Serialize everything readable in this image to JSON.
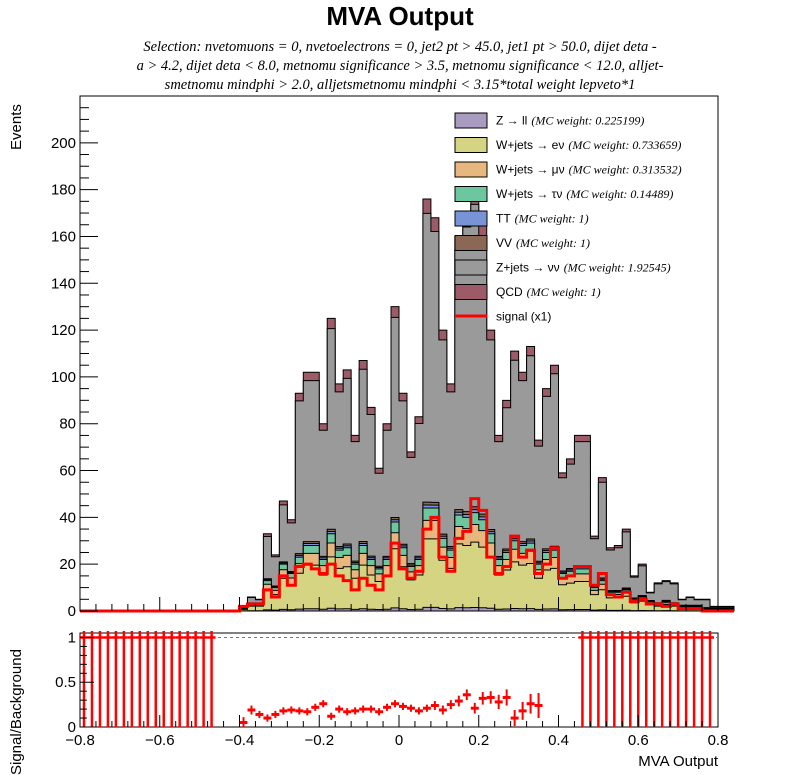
{
  "title": "MVA Output",
  "subtitle": [
    "Selection: nvetomuons = 0, nvetoelectrons = 0, jet2 pt > 45.0, jet1 pt > 50.0, dijet deta -",
    "a > 4.2, dijet deta < 8.0, metnomu significance > 3.5, metnomu significance < 12.0, alljet-",
    "smetnomu mindphi > 2.0, alljetsmetnomu mindphi < 3.15*total weight lepveto*1"
  ],
  "colors": {
    "zll": "#a99cc1",
    "wenu": "#d4d482",
    "wmunu": "#e7b77e",
    "wtaunu": "#6cc69f",
    "tt": "#7894d6",
    "vv": "#8b6755",
    "znunu": "#9a9a9a",
    "qcd": "#9c5b66",
    "signal": "#ff0000"
  },
  "chart_data": [
    {
      "type": "histogram-stack",
      "xlabel": "",
      "ylabel": "Events",
      "xlim": [
        -0.8,
        0.8
      ],
      "ylim": [
        0,
        220
      ],
      "yticks": [
        0,
        20,
        40,
        60,
        80,
        100,
        120,
        140,
        160,
        180,
        200
      ],
      "bin_start": -0.4,
      "bin_width": 0.02,
      "legend_position": "top-right",
      "legend": [
        {
          "key": "zll",
          "label": "Z → ll",
          "weight": "(MC weight: 0.225199)"
        },
        {
          "key": "wenu",
          "label": "W+jets → eν",
          "weight": "(MC weight: 0.733659)"
        },
        {
          "key": "wmunu",
          "label": "W+jets → μν",
          "weight": "(MC weight: 0.313532)"
        },
        {
          "key": "wtaunu",
          "label": "W+jets → τν",
          "weight": "(MC weight: 0.14489)"
        },
        {
          "key": "tt",
          "label": "TT",
          "weight": "(MC weight: 1)"
        },
        {
          "key": "vv",
          "label": "VV",
          "weight": "(MC weight: 1)"
        },
        {
          "key": "znunu",
          "label": "Z+jets → νν",
          "weight": "(MC weight: 1.92545)"
        },
        {
          "key": "qcd",
          "label": "QCD",
          "weight": "(MC weight: 1)"
        },
        {
          "key": "signal",
          "label": "signal (x1)",
          "weight": ""
        }
      ],
      "total": [
        1,
        6,
        5,
        33,
        24,
        47,
        39,
        93,
        102,
        102,
        80,
        125,
        97,
        103,
        75,
        107,
        87,
        61,
        80,
        130,
        93,
        68,
        83,
        176,
        168,
        120,
        97,
        160,
        170,
        180,
        165,
        120,
        75,
        90,
        111,
        102,
        113,
        73,
        95,
        105,
        59,
        65,
        75,
        75,
        32,
        57,
        27,
        28,
        35,
        15,
        20,
        8,
        12,
        13,
        12,
        5,
        6,
        5,
        5,
        2,
        2,
        2
      ],
      "wjets": [
        1,
        3,
        3,
        13,
        10,
        20,
        16,
        23,
        28,
        28,
        22,
        33,
        26,
        27,
        20,
        28,
        22,
        18,
        22,
        38,
        27,
        19,
        22,
        44,
        44,
        31,
        26,
        41,
        40,
        42,
        39,
        33,
        22,
        25,
        30,
        28,
        29,
        20,
        25,
        26,
        16,
        17,
        18,
        18,
        10,
        13,
        8,
        8,
        9,
        5,
        6,
        4,
        3,
        4,
        3,
        2,
        2,
        2,
        1,
        1,
        1,
        1
      ],
      "signal": [
        2,
        3,
        3,
        9,
        6,
        15,
        11,
        19,
        20,
        18,
        16,
        20,
        15,
        13,
        9,
        14,
        11,
        9,
        15,
        29,
        18,
        14,
        17,
        35,
        40,
        23,
        17,
        31,
        34,
        48,
        43,
        23,
        16,
        19,
        32,
        23,
        26,
        16,
        20,
        27,
        14,
        15,
        19,
        19,
        11,
        16,
        7,
        6,
        8,
        4,
        5,
        3,
        3,
        2,
        3,
        1,
        1,
        1,
        0,
        0,
        0,
        0
      ]
    },
    {
      "type": "ratio",
      "xlabel": "MVA Output",
      "ylabel": "Signal/Background",
      "xlim": [
        -0.8,
        0.8
      ],
      "ylim": [
        0,
        1.05
      ],
      "yticks": [
        0,
        0.5,
        1
      ],
      "xticks": [
        -0.8,
        -0.6,
        -0.4,
        -0.2,
        0,
        0.2,
        0.4,
        0.6,
        0.8
      ],
      "undefined_ranges": [
        [
          -0.8,
          -0.45
        ],
        [
          0.45,
          0.8
        ]
      ],
      "points": [
        {
          "x": -0.39,
          "y": 0.05,
          "err": 0.06
        },
        {
          "x": -0.37,
          "y": 0.19,
          "err": 0.05
        },
        {
          "x": -0.35,
          "y": 0.14,
          "err": 0.04
        },
        {
          "x": -0.33,
          "y": 0.1,
          "err": 0.04
        },
        {
          "x": -0.31,
          "y": 0.14,
          "err": 0.04
        },
        {
          "x": -0.29,
          "y": 0.18,
          "err": 0.04
        },
        {
          "x": -0.27,
          "y": 0.19,
          "err": 0.04
        },
        {
          "x": -0.25,
          "y": 0.18,
          "err": 0.04
        },
        {
          "x": -0.23,
          "y": 0.17,
          "err": 0.04
        },
        {
          "x": -0.21,
          "y": 0.22,
          "err": 0.04
        },
        {
          "x": -0.19,
          "y": 0.26,
          "err": 0.04
        },
        {
          "x": -0.17,
          "y": 0.12,
          "err": 0.04
        },
        {
          "x": -0.15,
          "y": 0.2,
          "err": 0.04
        },
        {
          "x": -0.13,
          "y": 0.17,
          "err": 0.04
        },
        {
          "x": -0.11,
          "y": 0.18,
          "err": 0.04
        },
        {
          "x": -0.09,
          "y": 0.2,
          "err": 0.04
        },
        {
          "x": -0.07,
          "y": 0.2,
          "err": 0.04
        },
        {
          "x": -0.05,
          "y": 0.17,
          "err": 0.04
        },
        {
          "x": -0.03,
          "y": 0.22,
          "err": 0.04
        },
        {
          "x": -0.01,
          "y": 0.26,
          "err": 0.04
        },
        {
          "x": 0.01,
          "y": 0.23,
          "err": 0.04
        },
        {
          "x": 0.03,
          "y": 0.21,
          "err": 0.04
        },
        {
          "x": 0.05,
          "y": 0.18,
          "err": 0.04
        },
        {
          "x": 0.07,
          "y": 0.21,
          "err": 0.04
        },
        {
          "x": 0.09,
          "y": 0.24,
          "err": 0.05
        },
        {
          "x": 0.11,
          "y": 0.19,
          "err": 0.05
        },
        {
          "x": 0.13,
          "y": 0.25,
          "err": 0.05
        },
        {
          "x": 0.15,
          "y": 0.29,
          "err": 0.06
        },
        {
          "x": 0.17,
          "y": 0.36,
          "err": 0.06
        },
        {
          "x": 0.19,
          "y": 0.21,
          "err": 0.06
        },
        {
          "x": 0.21,
          "y": 0.32,
          "err": 0.07
        },
        {
          "x": 0.23,
          "y": 0.33,
          "err": 0.07
        },
        {
          "x": 0.25,
          "y": 0.28,
          "err": 0.08
        },
        {
          "x": 0.27,
          "y": 0.33,
          "err": 0.09
        },
        {
          "x": 0.29,
          "y": 0.1,
          "err": 0.09
        },
        {
          "x": 0.31,
          "y": 0.18,
          "err": 0.1
        },
        {
          "x": 0.33,
          "y": 0.26,
          "err": 0.11
        },
        {
          "x": 0.35,
          "y": 0.24,
          "err": 0.14
        }
      ]
    }
  ]
}
